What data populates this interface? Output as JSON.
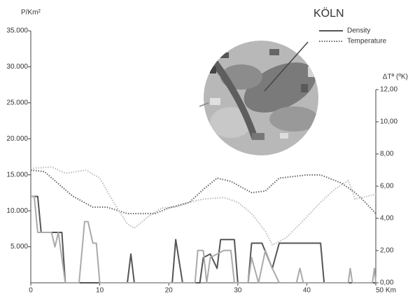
{
  "chart_data": {
    "type": "line",
    "title": "KÖLN",
    "y_label": "P/Km²",
    "y2_label": "ΔTª (ºK)",
    "xlim": [
      0,
      50
    ],
    "xticks": [
      0,
      10,
      20,
      30,
      40,
      {
        "value": 50,
        "label": "50 Km"
      }
    ],
    "ylim": [
      0,
      35000
    ],
    "yticks": [
      {
        "value": 5000,
        "label": "5.000"
      },
      {
        "value": 10000,
        "label": "10.000"
      },
      {
        "value": 15000,
        "label": "15.000"
      },
      {
        "value": 20000,
        "label": "20.000"
      },
      {
        "value": 25000,
        "label": "25.000"
      },
      {
        "value": 30000,
        "label": "30.000"
      },
      {
        "value": 35000,
        "label": "35.000"
      }
    ],
    "y2lim": [
      0,
      12
    ],
    "y2ticks": [
      {
        "value": 0,
        "label": "0,00"
      },
      {
        "value": 2,
        "label": "2,00"
      },
      {
        "value": 4,
        "label": "4,00"
      },
      {
        "value": 6,
        "label": "6,00"
      },
      {
        "value": 8,
        "label": "8,00"
      },
      {
        "value": 10,
        "label": "10,00"
      },
      {
        "value": 12,
        "label": "12,00"
      }
    ],
    "legend": [
      {
        "name": "Density",
        "color": "#555555",
        "dash": "solid"
      },
      {
        "name": "Temperature",
        "color": "#666666",
        "dash": "dotted"
      }
    ],
    "series": [
      {
        "color": "#555555",
        "dash": "solid",
        "axis": "y",
        "x": [
          0,
          1,
          1.5,
          4.5,
          5,
          14,
          14.5,
          15,
          20.5,
          21,
          22,
          24.5,
          25,
          26,
          27,
          27.5,
          29.5,
          30,
          31.5,
          32,
          33.5,
          35,
          36,
          42,
          42.5,
          50
        ],
        "values": [
          12000,
          12000,
          7000,
          7000,
          0,
          0,
          4000,
          0,
          0,
          6000,
          0,
          0,
          3500,
          4000,
          2000,
          6000,
          6000,
          0,
          0,
          5500,
          5500,
          2000,
          5500,
          5500,
          0,
          0
        ]
      },
      {
        "color": "#aaaaaa",
        "dash": "solid",
        "axis": "y",
        "x": [
          0,
          0.5,
          1,
          3,
          3.5,
          4,
          5,
          7,
          7.8,
          8.3,
          9,
          9.5,
          10,
          23.8,
          24.2,
          25,
          25.5,
          26,
          27,
          28,
          29,
          29.5,
          31.5,
          32,
          33,
          34,
          35,
          36,
          38.5,
          39,
          39.5,
          46,
          46.3,
          46.6,
          49.5,
          49.8,
          50
        ],
        "values": [
          12000,
          12000,
          7000,
          7000,
          5000,
          7000,
          0,
          0,
          8500,
          8500,
          5500,
          5500,
          0,
          0,
          4500,
          4500,
          0,
          3500,
          4000,
          4500,
          4500,
          0,
          0,
          3500,
          0,
          4500,
          2000,
          0,
          0,
          2000,
          0,
          0,
          2000,
          0,
          0,
          2000,
          0
        ]
      },
      {
        "color": "#666666",
        "dash": "dotted",
        "axis": "y2",
        "x": [
          0,
          2,
          6,
          9,
          11,
          14,
          18,
          20,
          23,
          25,
          27,
          29,
          32,
          34,
          36,
          40,
          42,
          45,
          47,
          48,
          50
        ],
        "values": [
          7.0,
          6.9,
          5.4,
          4.7,
          4.7,
          4.3,
          4.3,
          4.65,
          5.0,
          5.8,
          6.5,
          6.3,
          5.6,
          5.7,
          6.5,
          6.7,
          6.7,
          6.2,
          5.6,
          5.2,
          4.3
        ]
      },
      {
        "color": "#bbbbbb",
        "dash": "dotted",
        "axis": "y2",
        "x": [
          0,
          3,
          5,
          8,
          10,
          12,
          14,
          15,
          17,
          19,
          21,
          23,
          25,
          28,
          30,
          32,
          34,
          35,
          37,
          39,
          42,
          44,
          46,
          47,
          49,
          50
        ],
        "values": [
          7.1,
          7.2,
          6.8,
          7.0,
          6.5,
          5.0,
          3.65,
          3.4,
          4.1,
          4.65,
          4.7,
          5.0,
          5.2,
          5.3,
          5.0,
          4.3,
          3.2,
          2.35,
          2.8,
          3.65,
          5.0,
          5.8,
          6.35,
          5.2,
          5.4,
          5.5
        ]
      }
    ]
  }
}
